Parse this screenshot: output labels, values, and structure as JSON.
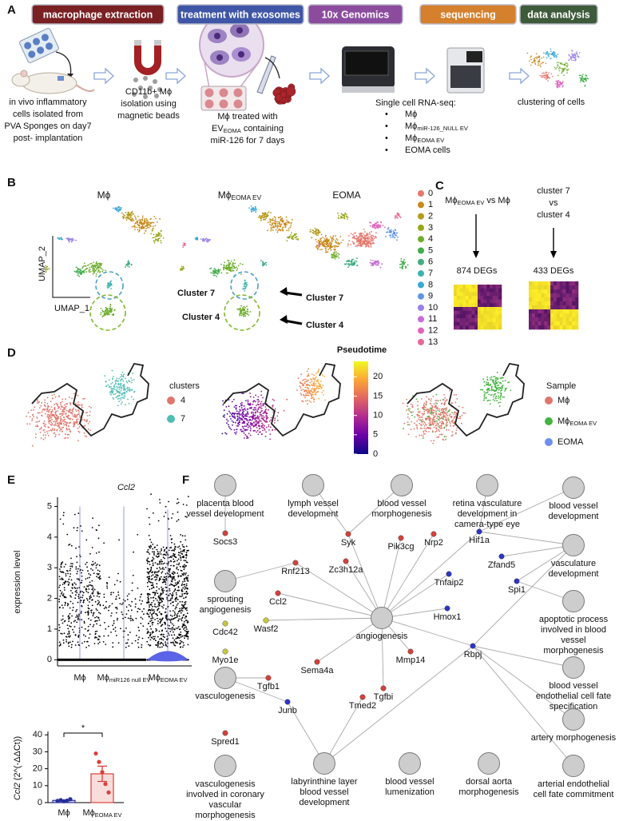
{
  "panels": {
    "a": "A",
    "b": "B",
    "c": "C",
    "d": "D",
    "e": "E",
    "f": "F"
  },
  "workflow": {
    "steps": [
      {
        "label": "macrophage extraction",
        "color": "#7a1f22"
      },
      {
        "label": "treatment with exosomes",
        "color": "#3f56a6"
      },
      {
        "label": "10x Genomics",
        "color": "#8c4c9e"
      },
      {
        "label": "sequencing",
        "color": "#d5802c"
      },
      {
        "label": "data analysis",
        "color": "#3d5a3a"
      }
    ],
    "caption_isolation": [
      "in vivo inflammatory",
      "cells isolated from",
      "PVA Sponges on day7",
      "post- implantation"
    ],
    "caption_beads": [
      "CD11b+ Mϕ",
      "isolation using",
      "magnetic beads"
    ],
    "caption_treatment": {
      "line1": "Mϕ treated with",
      "line2": {
        "main": "EV",
        "sub": "EOMA",
        "rest": "containing"
      },
      "line3": "miR-126 for 7 days"
    },
    "scrnaseq": {
      "title": "Single cell RNA-seq:",
      "bullet": "•",
      "samples": [
        {
          "main": "Mϕ"
        },
        {
          "main": "Mϕ",
          "sub": "miR-126_NULL EV"
        },
        {
          "main": "Mϕ",
          "sub": "EOMA EV"
        },
        {
          "main": "EOMA cells"
        }
      ]
    },
    "caption_clustering": "clustering of cells"
  },
  "umap": {
    "titles": [
      {
        "main": "Mϕ"
      },
      {
        "main": "Mϕ",
        "sub": "EOMA EV"
      },
      {
        "main": "EOMA"
      }
    ],
    "x_label": "UMAP_1",
    "y_label": "UMAP_2",
    "cluster_7": "Cluster 7",
    "cluster_4": "Cluster 4",
    "legend": [
      {
        "label": "0",
        "color": "#e8776d"
      },
      {
        "label": "1",
        "color": "#c98a1c"
      },
      {
        "label": "2",
        "color": "#b59a1b"
      },
      {
        "label": "3",
        "color": "#98a61a"
      },
      {
        "label": "4",
        "color": "#6cad2b"
      },
      {
        "label": "5",
        "color": "#3fae4a"
      },
      {
        "label": "6",
        "color": "#3fae80"
      },
      {
        "label": "7",
        "color": "#3bb3b0"
      },
      {
        "label": "8",
        "color": "#38a8d6"
      },
      {
        "label": "9",
        "color": "#5f93e8"
      },
      {
        "label": "10",
        "color": "#9b80e8"
      },
      {
        "label": "11",
        "color": "#c86ad8"
      },
      {
        "label": "12",
        "color": "#e064be"
      },
      {
        "label": "13",
        "color": "#e6679a"
      }
    ]
  },
  "deg": {
    "comparison_1": {
      "main": "Mϕ",
      "sub": "EOMA EV",
      "rest": "vs Mϕ"
    },
    "comparison_2": [
      "cluster 7",
      "vs",
      "cluster 4"
    ],
    "count_1": "874 DEGs",
    "count_2": "433 DEGs"
  },
  "trajectory": {
    "clusters_title": "clusters",
    "clusters": [
      {
        "label": "4",
        "color": "#e0766b"
      },
      {
        "label": "7",
        "color": "#4fbdb5"
      }
    ],
    "pseudotime_title": "Pseudotime",
    "pseudotime_range": [
      0,
      24
    ],
    "pseudotime_ticks": [
      0,
      5,
      10,
      15,
      20
    ],
    "sample_title": "Sample",
    "samples": [
      {
        "main": "Mϕ",
        "color": "#e0766b"
      },
      {
        "main": "Mϕ",
        "sub": "EOMA EV",
        "color": "#43b43f"
      },
      {
        "main": "EOMA",
        "color": "#6f8ff0"
      }
    ]
  },
  "chart_data": [
    {
      "type": "violin",
      "title": "Ccl2",
      "y_label": "expression level",
      "categories": [
        {
          "main": "Mϕ"
        },
        {
          "main": "Mϕ",
          "sub": "miR126 null EV"
        },
        {
          "main": "Mϕ",
          "sub": "EOMA EV"
        }
      ],
      "ylim": [
        -0.2,
        5.3
      ],
      "yticks": [
        0,
        1,
        2,
        3,
        4,
        5
      ],
      "violin_color": "#5b63e6"
    },
    {
      "type": "bar",
      "y_label": {
        "gene": "Ccl2",
        "rest": "(2^(-ΔΔCt))"
      },
      "categories": [
        {
          "main": "Mϕ"
        },
        {
          "main": "Mϕ",
          "sub": "EOMA EV"
        }
      ],
      "values": [
        1.3,
        17
      ],
      "errors": [
        0.3,
        4.5
      ],
      "points": [
        [
          1.0,
          1.5,
          0.8,
          1.2,
          2.0
        ],
        [
          29,
          24,
          18,
          11,
          6
        ]
      ],
      "colors": [
        "#2b2f9a",
        "#d9403a"
      ],
      "significance": "*",
      "ylim": [
        0,
        42
      ],
      "yticks": [
        0,
        10,
        20,
        30,
        40
      ]
    }
  ],
  "network": {
    "terms": [
      {
        "lines": [
          "placenta blood",
          "vessel development"
        ]
      },
      {
        "lines": [
          "lymph vessel",
          "development"
        ]
      },
      {
        "lines": [
          "blood vessel",
          "morphogenesis"
        ]
      },
      {
        "lines": [
          "retina vasculature",
          "development in",
          "camera-type eye"
        ]
      },
      {
        "lines": [
          "blood vessel",
          "development"
        ]
      },
      {
        "lines": [
          "vasculature",
          "development"
        ]
      },
      {
        "lines": [
          "sprouting",
          "angiogenesis"
        ]
      },
      {
        "lines": [
          "apoptotic process",
          "involved in blood",
          "vessel",
          "morphogenesis"
        ]
      },
      {
        "lines": [
          "angiogenesis"
        ]
      },
      {
        "lines": [
          "vasculogenesis"
        ]
      },
      {
        "lines": [
          "blood vessel",
          "endothelial cell fate",
          "specification"
        ]
      },
      {
        "lines": [
          "artery morphogenesis"
        ]
      },
      {
        "lines": [
          "vasculogenesis",
          "involved in coronary",
          "vascular",
          "morphogenesis"
        ]
      },
      {
        "lines": [
          "labyrinthine layer",
          "blood vessel",
          "development"
        ]
      },
      {
        "lines": [
          "blood vessel",
          "lumenization"
        ]
      },
      {
        "lines": [
          "dorsal aorta",
          "morphogenesis"
        ]
      },
      {
        "lines": [
          "arterial endothelial",
          "cell fate commitment"
        ]
      }
    ],
    "genes": [
      {
        "label": "Socs3",
        "color": "#d2413a"
      },
      {
        "label": "Syk",
        "color": "#d2413a"
      },
      {
        "label": "Zc3h12a",
        "color": "#d2413a"
      },
      {
        "label": "Pik3cg",
        "color": "#d2413a"
      },
      {
        "label": "Nrp2",
        "color": "#d2413a"
      },
      {
        "label": "Hif1a",
        "color": "#2a35c8"
      },
      {
        "label": "Zfand5",
        "color": "#2a35c8"
      },
      {
        "label": "Tnfaip2",
        "color": "#2a35c8"
      },
      {
        "label": "Spi1",
        "color": "#2a35c8"
      },
      {
        "label": "Rnf213",
        "color": "#d2413a"
      },
      {
        "label": "Ccl2",
        "color": "#d2413a"
      },
      {
        "label": "Cdc42",
        "color": "#c8c83a"
      },
      {
        "label": "Wasf2",
        "color": "#c8c83a"
      },
      {
        "label": "Hmox1",
        "color": "#2a35c8"
      },
      {
        "label": "Myo1e",
        "color": "#c8c83a"
      },
      {
        "label": "Sema4a",
        "color": "#d2413a"
      },
      {
        "label": "Mmp14",
        "color": "#d2413a"
      },
      {
        "label": "Rbpj",
        "color": "#2a35c8"
      },
      {
        "label": "Tgfb1",
        "color": "#d2413a"
      },
      {
        "label": "Tgfbi",
        "color": "#d2413a"
      },
      {
        "label": "Tmed2",
        "color": "#d2413a"
      },
      {
        "label": "Junb",
        "color": "#2a35c8"
      },
      {
        "label": "Spred1",
        "color": "#d2413a"
      }
    ]
  }
}
